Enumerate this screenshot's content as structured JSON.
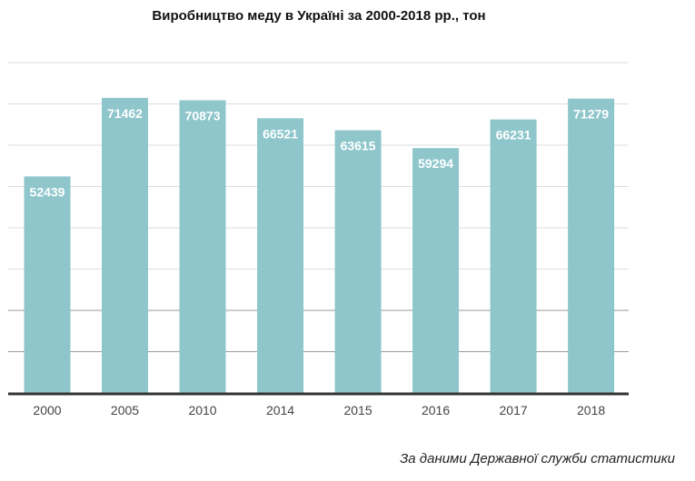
{
  "chart_data": {
    "type": "bar",
    "title": "Виробництво меду в Україні за 2000-2018 рр., тон",
    "categories": [
      "2000",
      "2005",
      "2010",
      "2014",
      "2015",
      "2016",
      "2017",
      "2018"
    ],
    "values": [
      52439,
      71462,
      70873,
      66521,
      63615,
      59294,
      66231,
      71279
    ],
    "xlabel": "",
    "ylabel": "",
    "ylim": [
      0,
      80000
    ],
    "grid": true,
    "legend": "none",
    "data_labels": "inside-top",
    "bar_color": "#8ec6cb"
  },
  "source_note": "За даними Державної служби статистики",
  "colors": {
    "bar": "#8ec6cb",
    "label_text": "#ffffff",
    "grid": "#dddddd",
    "axis": "#333333",
    "tick_text": "#444444"
  }
}
